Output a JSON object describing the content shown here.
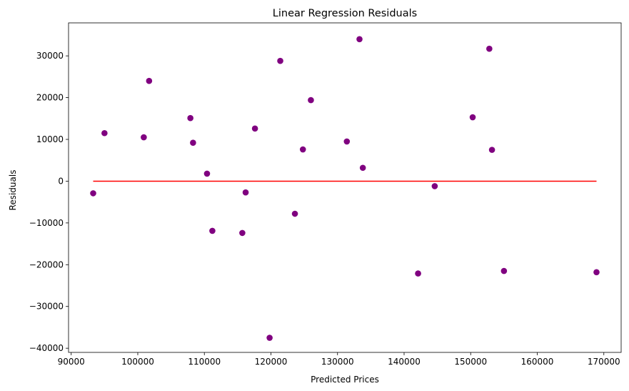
{
  "chart_data": {
    "type": "scatter",
    "title": "Linear Regression Residuals",
    "xlabel": "Predicted Prices",
    "ylabel": "Residuals",
    "xlim": [
      89600,
      172600
    ],
    "ylim": [
      -41000,
      37900
    ],
    "xticks": [
      90000,
      100000,
      110000,
      120000,
      130000,
      140000,
      150000,
      160000,
      170000
    ],
    "xtick_labels": [
      "90000",
      "100000",
      "110000",
      "120000",
      "130000",
      "140000",
      "150000",
      "160000",
      "170000"
    ],
    "yticks": [
      -40000,
      -30000,
      -20000,
      -10000,
      0,
      10000,
      20000,
      30000
    ],
    "ytick_labels": [
      "−40000",
      "−30000",
      "−20000",
      "−10000",
      "0",
      "10000",
      "20000",
      "30000"
    ],
    "grid": false,
    "series": [
      {
        "marker_color": "#800080",
        "x": [
          93300,
          95000,
          100900,
          101700,
          107900,
          108300,
          110400,
          111200,
          115700,
          116200,
          117600,
          119800,
          121400,
          123600,
          124800,
          126000,
          131400,
          133300,
          133800,
          142100,
          144600,
          150300,
          152800,
          153200,
          155000,
          168900
        ],
        "y": [
          -2900,
          11500,
          10500,
          24000,
          15100,
          9200,
          1800,
          -11900,
          -12400,
          -2700,
          12600,
          -37500,
          28800,
          -7800,
          7600,
          19400,
          9500,
          34000,
          3200,
          -22100,
          -1200,
          15300,
          31700,
          7500,
          -21500,
          -21800
        ]
      }
    ],
    "reference_line": {
      "color": "#ff0000",
      "x": [
        93300,
        168900
      ],
      "y": [
        0,
        0
      ]
    }
  }
}
